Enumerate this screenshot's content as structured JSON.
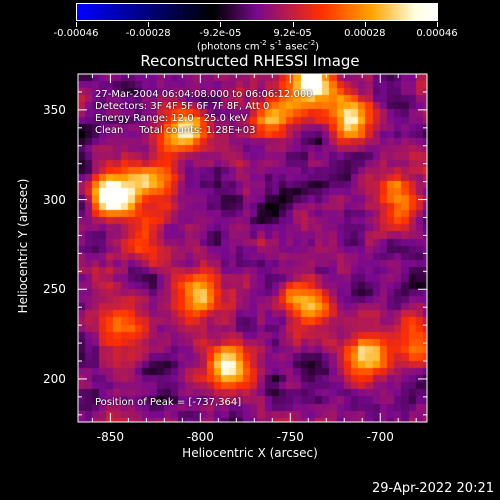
{
  "colorbar": {
    "ticks": [
      {
        "label": "-0.00046",
        "frac": 0.0
      },
      {
        "label": "-0.00028",
        "frac": 0.2
      },
      {
        "label": "-9.2e-05",
        "frac": 0.4
      },
      {
        "label": "9.2e-05",
        "frac": 0.6
      },
      {
        "label": "0.00028",
        "frac": 0.8
      },
      {
        "label": "0.00046",
        "frac": 1.0
      }
    ],
    "unit_main": "(photons cm",
    "unit_e1": "-2",
    "unit_mid": " s",
    "unit_e2": "-1",
    "unit_end": " asec",
    "unit_e3": "-2",
    "unit_close": ")",
    "gradient_colors": [
      "#0000ff",
      "#000000",
      "#7a0a90",
      "#ff3000",
      "#ffa500",
      "#ffffe0",
      "#ffffff"
    ]
  },
  "title": "Reconstructed RHESSI Image",
  "info": {
    "line1": "27-Mar-2004 06:04:08.000 to 06:06:12.000",
    "line2": "Detectors: 3F 4F 5F 6F 7F 8F, Att 0",
    "line3": "Energy Range: 12.0 - 25.0 keV",
    "line4": "Clean     Total counts: 1.28E+03"
  },
  "peak": "Position of Peak = [-737,364]",
  "axes": {
    "x_label": "Heliocentric X (arcsec)",
    "y_label": "Heliocentric Y (arcsec)",
    "x_range": [
      -868,
      -674
    ],
    "y_range": [
      176,
      370
    ],
    "x_ticks": [
      {
        "label": "-850",
        "value": -850
      },
      {
        "label": "-800",
        "value": -800
      },
      {
        "label": "-750",
        "value": -750
      },
      {
        "label": "-700",
        "value": -700
      }
    ],
    "y_ticks": [
      {
        "label": "350",
        "value": 350
      },
      {
        "label": "300",
        "value": 300
      },
      {
        "label": "250",
        "value": 250
      },
      {
        "label": "200",
        "value": 200
      }
    ]
  },
  "image_blobs": [
    {
      "x": -848,
      "y": 303,
      "amp": 1.25
    },
    {
      "x": -783,
      "y": 207,
      "amp": 1.15
    },
    {
      "x": -737,
      "y": 364,
      "amp": 1.3
    },
    {
      "x": -760,
      "y": 345,
      "amp": 0.7
    },
    {
      "x": -808,
      "y": 338,
      "amp": 0.85
    },
    {
      "x": -825,
      "y": 310,
      "amp": 0.75
    },
    {
      "x": -800,
      "y": 248,
      "amp": 0.9
    },
    {
      "x": -740,
      "y": 242,
      "amp": 0.85
    },
    {
      "x": -717,
      "y": 345,
      "amp": 0.9
    },
    {
      "x": -708,
      "y": 212,
      "amp": 0.85
    },
    {
      "x": -680,
      "y": 220,
      "amp": 0.7
    },
    {
      "x": -690,
      "y": 300,
      "amp": 0.75
    },
    {
      "x": -845,
      "y": 230,
      "amp": 0.55
    },
    {
      "x": -830,
      "y": 275,
      "amp": 0.5
    }
  ],
  "timestamp": "29-Apr-2022 20:21"
}
